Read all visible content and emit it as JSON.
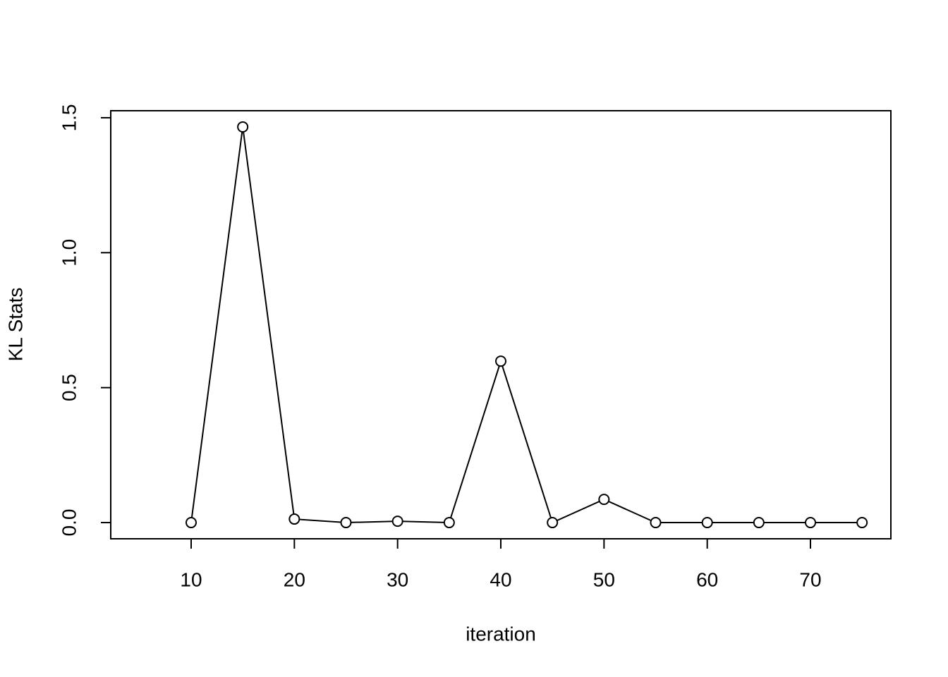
{
  "chart_data": {
    "type": "line",
    "x_label": "iteration",
    "y_label": "KL Stats",
    "x": [
      10,
      15,
      20,
      25,
      30,
      35,
      40,
      45,
      50,
      55,
      60,
      65,
      70,
      75
    ],
    "series": [
      {
        "color": "#000000",
        "values": [
          0.0,
          1.466,
          0.013,
          0.0,
          0.005,
          0.0,
          0.598,
          0.0,
          0.086,
          0.0,
          0.0,
          0.0,
          0.0,
          0.0
        ]
      }
    ],
    "xlim": [
      2.21,
      77.79
    ],
    "ylim": [
      -0.06,
      1.526
    ],
    "xticks": [
      10,
      20,
      30,
      40,
      50,
      60,
      70
    ],
    "yticks": [
      {
        "value": 0,
        "label": "0.0"
      },
      {
        "value": 0.5,
        "label": "0.5"
      },
      {
        "value": 1,
        "label": "1.0"
      },
      {
        "value": 1.5,
        "label": "1.5"
      }
    ],
    "markers": "open-circle",
    "grid": false
  }
}
